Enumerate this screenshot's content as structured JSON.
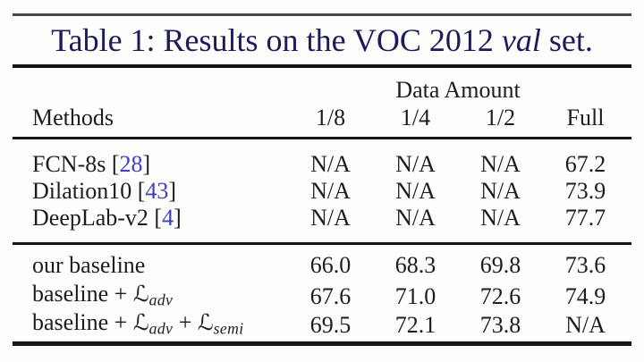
{
  "title": {
    "before": "Table 1: Results on the VOC 2012 ",
    "emphasis": "val",
    "after": " set."
  },
  "header": {
    "group_label": "Data Amount",
    "methods_label": "Methods",
    "col_labels": [
      "1/8",
      "1/4",
      "1/2",
      "Full"
    ]
  },
  "section1": {
    "rows": [
      {
        "prefix": "FCN-8s [",
        "cite": "28",
        "suffix": "]",
        "values": [
          "N/A",
          "N/A",
          "N/A",
          "67.2"
        ]
      },
      {
        "prefix": "Dilation10 [",
        "cite": "43",
        "suffix": "]",
        "values": [
          "N/A",
          "N/A",
          "N/A",
          "73.9"
        ]
      },
      {
        "prefix": "DeepLab-v2 [",
        "cite": "4",
        "suffix": "]",
        "values": [
          "N/A",
          "N/A",
          "N/A",
          "77.7"
        ]
      }
    ]
  },
  "section2": {
    "rows": [
      {
        "label": "our baseline",
        "values": [
          "66.0",
          "68.3",
          "69.8",
          "73.6"
        ]
      },
      {
        "label": "baseline + ",
        "loss1_symbol": "ℒ",
        "loss1_sub": "adv",
        "values": [
          "67.6",
          "71.0",
          "72.6",
          "74.9"
        ]
      },
      {
        "label": "baseline + ",
        "loss1_symbol": "ℒ",
        "loss1_sub": "adv",
        "joiner": " + ",
        "loss2_symbol": "ℒ",
        "loss2_sub": "semi",
        "values": [
          "69.5",
          "72.1",
          "73.8",
          "N/A"
        ]
      }
    ]
  },
  "colors": {
    "title_text": "#1c1c5a",
    "body_text": "#1d1d1d",
    "citation": "#3e3ebe",
    "rule_dark": "#161616",
    "rule_gray": "#474747"
  }
}
